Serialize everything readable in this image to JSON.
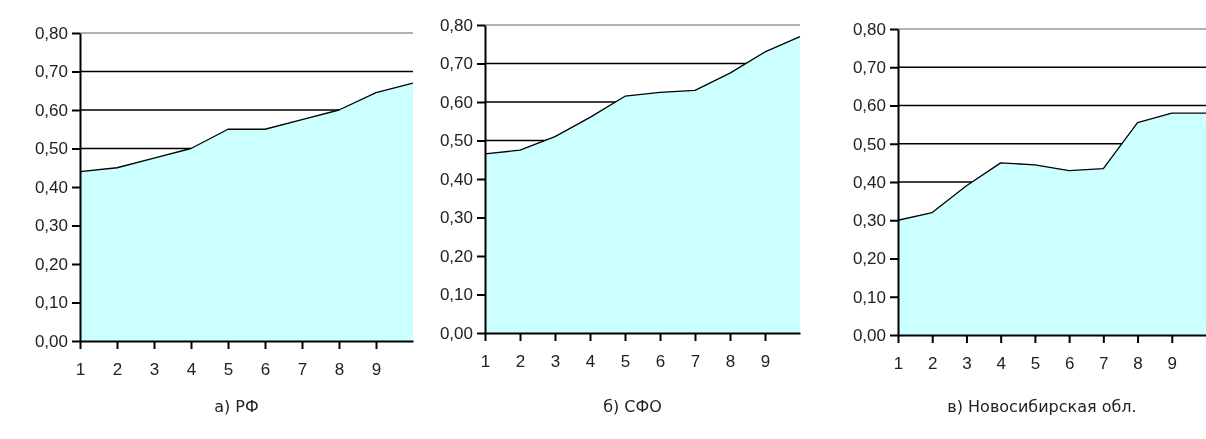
{
  "chart_data": [
    {
      "type": "area",
      "xlabel": "а) РФ",
      "x": [
        1,
        2,
        3,
        4,
        5,
        6,
        7,
        8,
        9,
        10
      ],
      "xlim": [
        1,
        10
      ],
      "xticks": [
        1,
        2,
        3,
        4,
        5,
        6,
        7,
        8,
        9
      ],
      "ylim": [
        0,
        0.8
      ],
      "yticks": [
        {
          "value": 0,
          "label": "0,00"
        },
        {
          "value": 0.1,
          "label": "0,10"
        },
        {
          "value": 0.2,
          "label": "0,20"
        },
        {
          "value": 0.3,
          "label": "0,30"
        },
        {
          "value": 0.4,
          "label": "0,40"
        },
        {
          "value": 0.5,
          "label": "0,50"
        },
        {
          "value": 0.6,
          "label": "0,60"
        },
        {
          "value": 0.7,
          "label": "0,70"
        },
        {
          "value": 0.8,
          "label": "0,80"
        }
      ],
      "grid": "y",
      "series": [
        {
          "color": "#ccffff",
          "values": [
            0.44,
            0.45,
            0.475,
            0.5,
            0.55,
            0.55,
            0.575,
            0.6,
            0.645,
            0.67
          ]
        }
      ]
    },
    {
      "type": "area",
      "xlabel": "б) СФО",
      "x": [
        1,
        2,
        3,
        4,
        5,
        6,
        7,
        8,
        9,
        10
      ],
      "xlim": [
        1,
        10
      ],
      "xticks": [
        1,
        2,
        3,
        4,
        5,
        6,
        7,
        8,
        9
      ],
      "ylim": [
        0,
        0.8
      ],
      "yticks": [
        {
          "value": 0,
          "label": "0,00"
        },
        {
          "value": 0.1,
          "label": "0,10"
        },
        {
          "value": 0.2,
          "label": "0,20"
        },
        {
          "value": 0.3,
          "label": "0,30"
        },
        {
          "value": 0.4,
          "label": "0,40"
        },
        {
          "value": 0.5,
          "label": "0,50"
        },
        {
          "value": 0.6,
          "label": "0,60"
        },
        {
          "value": 0.7,
          "label": "0,70"
        },
        {
          "value": 0.8,
          "label": "0,80"
        }
      ],
      "grid": "y",
      "series": [
        {
          "color": "#ccffff",
          "values": [
            0.465,
            0.475,
            0.51,
            0.56,
            0.615,
            0.625,
            0.63,
            0.675,
            0.73,
            0.77
          ]
        }
      ]
    },
    {
      "type": "area",
      "xlabel": "в) Новосибирская обл.",
      "x": [
        1,
        2,
        3,
        4,
        5,
        6,
        7,
        8,
        9,
        10
      ],
      "xlim": [
        1,
        10
      ],
      "xticks": [
        1,
        2,
        3,
        4,
        5,
        6,
        7,
        8,
        9
      ],
      "ylim": [
        0,
        0.8
      ],
      "yticks": [
        {
          "value": 0,
          "label": "0,00"
        },
        {
          "value": 0.1,
          "label": "0,10"
        },
        {
          "value": 0.2,
          "label": "0,20"
        },
        {
          "value": 0.3,
          "label": "0,30"
        },
        {
          "value": 0.4,
          "label": "0,40"
        },
        {
          "value": 0.5,
          "label": "0,50"
        },
        {
          "value": 0.6,
          "label": "0,60"
        },
        {
          "value": 0.7,
          "label": "0,70"
        },
        {
          "value": 0.8,
          "label": "0,80"
        }
      ],
      "grid": "y",
      "series": [
        {
          "color": "#ccffff",
          "values": [
            0.3,
            0.32,
            0.39,
            0.45,
            0.445,
            0.43,
            0.435,
            0.555,
            0.58,
            0.58
          ]
        }
      ]
    }
  ]
}
